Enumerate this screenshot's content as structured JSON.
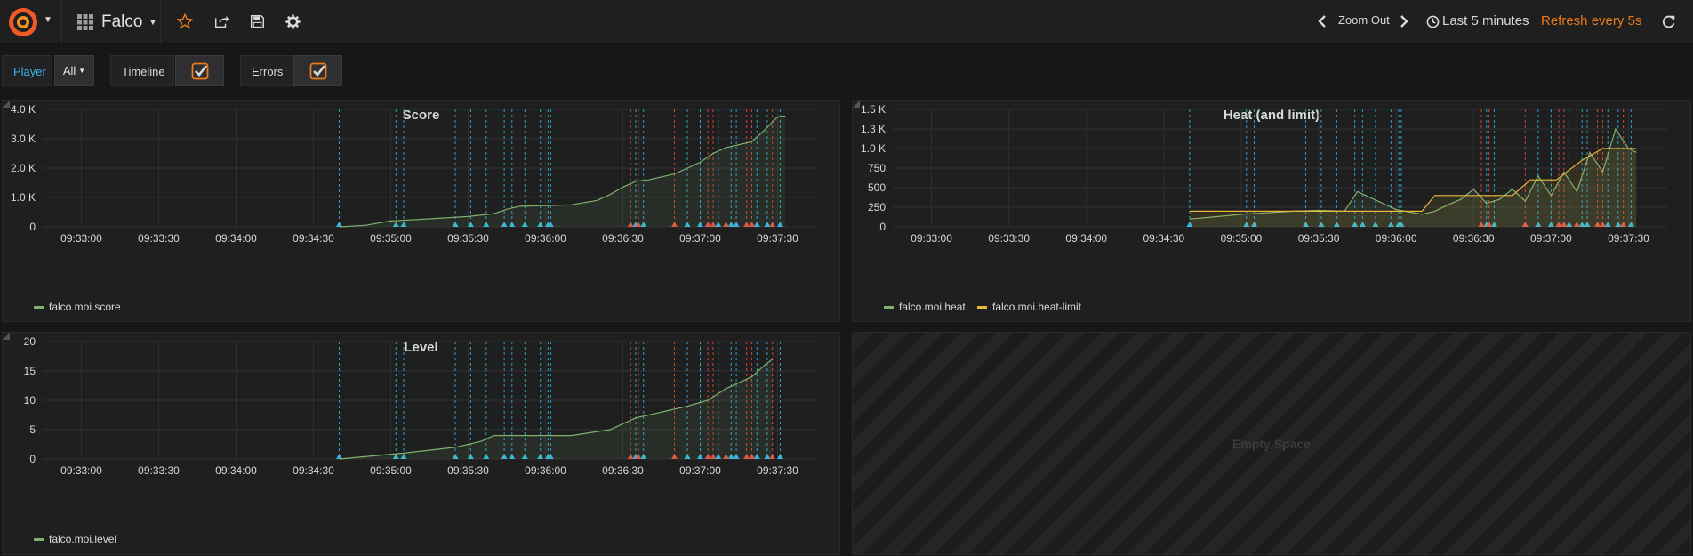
{
  "navbar": {
    "dashboard_name": "Falco",
    "zoom_out_label": "Zoom Out",
    "time_range_label": "Last 5 minutes",
    "refresh_label": "Refresh every 5s",
    "icons": [
      "grafana-logo-icon",
      "dashboards-grid-icon",
      "star-icon",
      "share-icon",
      "save-icon",
      "settings-gear-icon",
      "chevron-left-icon",
      "chevron-right-icon",
      "clock-icon",
      "refresh-icon"
    ],
    "accent_color": "#eb7b18"
  },
  "variables": {
    "player": {
      "label": "Player",
      "value": "All"
    },
    "timeline": {
      "label": "Timeline",
      "checked": true
    },
    "errors": {
      "label": "Errors",
      "checked": true
    }
  },
  "colors": {
    "series_green": "#7eb26d",
    "series_yellow": "#eab839",
    "annotation_blue": "#33b5e5",
    "annotation_red": "#e24d42"
  },
  "annotations": {
    "blue": [
      "09:34:40",
      "09:35:02",
      "09:35:05",
      "09:35:25",
      "09:35:31",
      "09:35:37",
      "09:35:44",
      "09:35:47",
      "09:35:52",
      "09:35:58",
      "09:36:01",
      "09:36:02",
      "09:36:35",
      "09:36:38",
      "09:36:55",
      "09:37:00",
      "09:37:07",
      "09:37:12",
      "09:37:14",
      "09:37:22",
      "09:37:26",
      "09:37:31"
    ],
    "red": [
      "09:36:33",
      "09:36:36",
      "09:36:50",
      "09:37:03",
      "09:37:05",
      "09:37:10",
      "09:37:18",
      "09:37:20",
      "09:37:28"
    ]
  },
  "panels": {
    "score": {
      "title": "Score",
      "chart_data": {
        "type": "line",
        "x_ticks": [
          "09:33:00",
          "09:33:30",
          "09:34:00",
          "09:34:30",
          "09:35:00",
          "09:35:30",
          "09:36:00",
          "09:36:30",
          "09:37:00",
          "09:37:30"
        ],
        "y_ticks": [
          "0",
          "1.0 K",
          "2.0 K",
          "3.0 K",
          "4.0 K"
        ],
        "ylim": [
          0,
          4000
        ],
        "series": [
          {
            "name": "falco.moi.score",
            "x": [
              "09:34:40",
              "09:34:50",
              "09:35:00",
              "09:35:10",
              "09:35:20",
              "09:35:30",
              "09:35:40",
              "09:35:45",
              "09:35:50",
              "09:36:00",
              "09:36:10",
              "09:36:20",
              "09:36:25",
              "09:36:30",
              "09:36:35",
              "09:36:40",
              "09:36:50",
              "09:36:55",
              "09:37:00",
              "09:37:05",
              "09:37:10",
              "09:37:20",
              "09:37:25",
              "09:37:30",
              "09:37:33"
            ],
            "values": [
              0,
              50,
              200,
              250,
              300,
              350,
              450,
              600,
              700,
              720,
              750,
              900,
              1100,
              1350,
              1550,
              1600,
              1800,
              2000,
              2200,
              2500,
              2700,
              2900,
              3300,
              3750,
              3780
            ]
          }
        ]
      }
    },
    "heat": {
      "title": "Heat (and limit)",
      "chart_data": {
        "type": "line",
        "x_ticks": [
          "09:33:00",
          "09:33:30",
          "09:34:00",
          "09:34:30",
          "09:35:00",
          "09:35:30",
          "09:36:00",
          "09:36:30",
          "09:37:00",
          "09:37:30"
        ],
        "y_ticks": [
          "0",
          "250",
          "500",
          "750",
          "1.0 K",
          "1.3 K",
          "1.5 K"
        ],
        "ylim": [
          0,
          1500
        ],
        "series": [
          {
            "name": "falco.moi.heat",
            "x": [
              "09:34:40",
              "09:34:50",
              "09:35:00",
              "09:35:10",
              "09:35:20",
              "09:35:30",
              "09:35:40",
              "09:35:45",
              "09:36:00",
              "09:36:10",
              "09:36:15",
              "09:36:20",
              "09:36:25",
              "09:36:30",
              "09:36:35",
              "09:36:40",
              "09:36:45",
              "09:36:50",
              "09:36:55",
              "09:37:00",
              "09:37:05",
              "09:37:10",
              "09:37:15",
              "09:37:20",
              "09:37:25",
              "09:37:30",
              "09:37:33"
            ],
            "values": [
              100,
              130,
              160,
              180,
              200,
              210,
              200,
              450,
              220,
              160,
              200,
              280,
              350,
              480,
              300,
              350,
              480,
              330,
              650,
              400,
              700,
              450,
              950,
              700,
              1250,
              1000,
              950
            ]
          },
          {
            "name": "falco.moi.heat-limit",
            "x": [
              "09:34:40",
              "09:36:10",
              "09:36:15",
              "09:36:45",
              "09:36:52",
              "09:37:02",
              "09:37:12",
              "09:37:20",
              "09:37:33"
            ],
            "values": [
              200,
              200,
              400,
              400,
              600,
              600,
              850,
              1000,
              1000
            ]
          }
        ]
      }
    },
    "level": {
      "title": "Level",
      "chart_data": {
        "type": "line",
        "x_ticks": [
          "09:33:00",
          "09:33:30",
          "09:34:00",
          "09:34:30",
          "09:35:00",
          "09:35:30",
          "09:36:00",
          "09:36:30",
          "09:37:00",
          "09:37:30"
        ],
        "y_ticks": [
          "0",
          "5",
          "10",
          "15",
          "20"
        ],
        "ylim": [
          0,
          20
        ],
        "series": [
          {
            "name": "falco.moi.level",
            "x": [
              "09:34:40",
              "09:35:05",
              "09:35:25",
              "09:35:35",
              "09:35:40",
              "09:36:10",
              "09:36:25",
              "09:36:30",
              "09:36:35",
              "09:36:55",
              "09:37:03",
              "09:37:10",
              "09:37:20",
              "09:37:25",
              "09:37:28"
            ],
            "values": [
              0,
              1,
              2,
              3,
              4,
              4,
              5,
              6,
              7,
              9,
              10,
              12,
              14,
              16,
              17
            ]
          }
        ]
      }
    },
    "empty": {
      "label": "Empty Space"
    }
  }
}
